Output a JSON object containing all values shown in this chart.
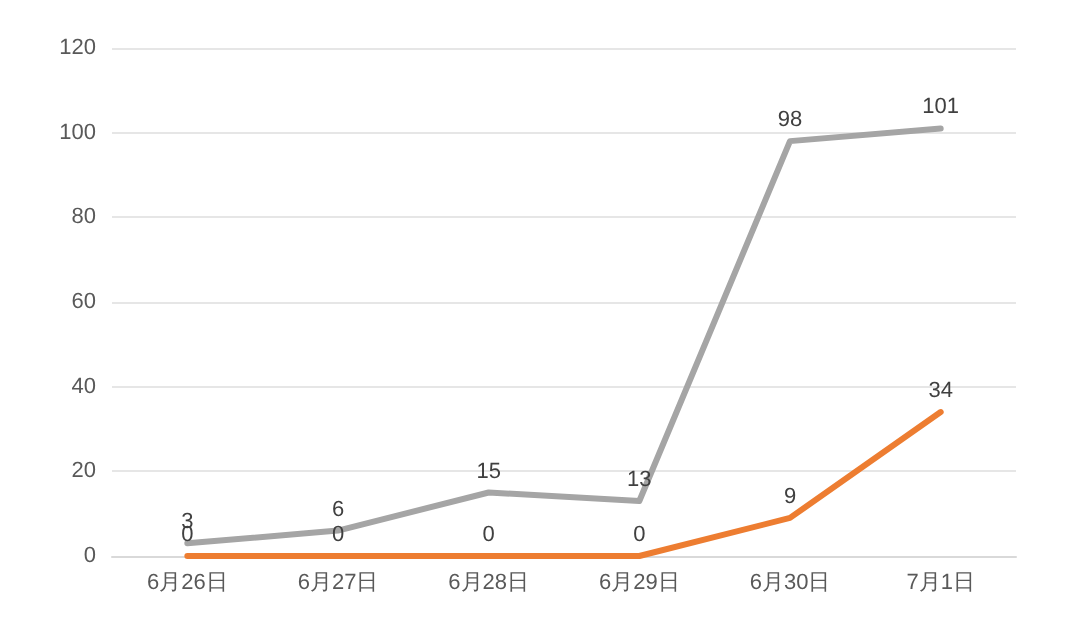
{
  "chart_data": {
    "type": "line",
    "categories": [
      "6月26日",
      "6月27日",
      "6月28日",
      "6月29日",
      "6月30日",
      "7月1日"
    ],
    "series": [
      {
        "color": "#a5a5a5",
        "values": [
          3,
          6,
          15,
          13,
          98,
          101
        ]
      },
      {
        "color": "#ed7d31",
        "values": [
          0,
          0,
          0,
          0,
          9,
          34
        ]
      }
    ],
    "ylim": [
      0,
      120
    ],
    "yticks": [
      0,
      20,
      40,
      60,
      80,
      100,
      120
    ],
    "grid": "y",
    "marker": "none",
    "line_style": "solid",
    "data_labels": true
  }
}
